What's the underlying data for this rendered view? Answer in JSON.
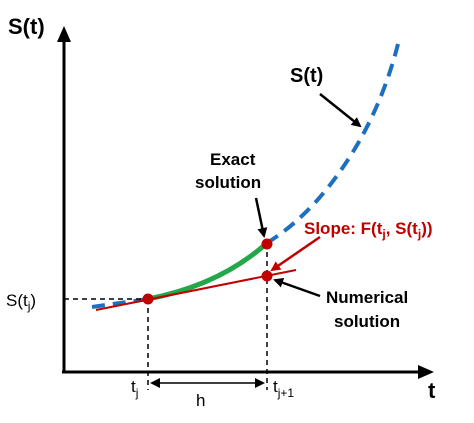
{
  "axes": {
    "y_label": "S(t)",
    "x_label": "t"
  },
  "labels": {
    "curve": "S(t)",
    "exact_line1": "Exact",
    "exact_line2": "solution",
    "slope_prefix": "Slope: F(t",
    "slope_sub1": "j",
    "slope_mid": ", S(t",
    "slope_sub2": "j",
    "slope_suffix": "))",
    "numerical_line1": "Numerical",
    "numerical_line2": "solution",
    "s_tj_main": "S(t",
    "s_tj_sub": "j",
    "s_tj_close": ")",
    "tj_main": "t",
    "tj_sub": "j",
    "tj1_main": "t",
    "tj1_sub": "j+1",
    "h": "h"
  },
  "colors": {
    "axis": "#000000",
    "exact_curve_dashed": "#1f6fbf",
    "exact_segment": "#22a84a",
    "tangent_line": "#c00000",
    "points": "#c00000",
    "slope_label": "#c00000"
  }
}
